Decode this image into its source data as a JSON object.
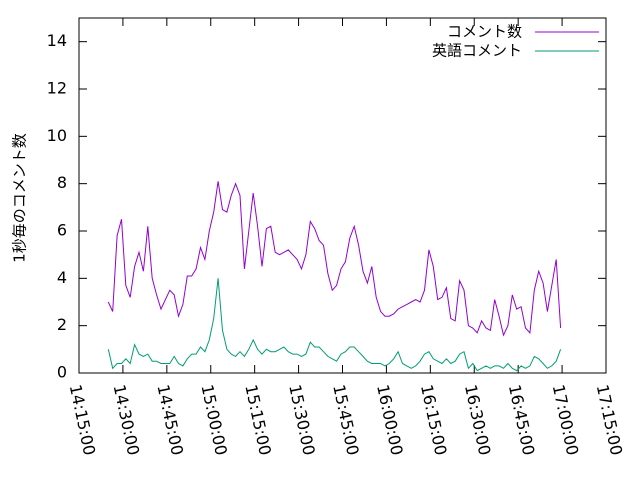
{
  "chart_data": {
    "type": "line",
    "ylabel": "1秒毎のコメント数",
    "x": [
      "14:25:00",
      "14:26:30",
      "14:28:00",
      "14:29:30",
      "14:31:00",
      "14:32:30",
      "14:34:00",
      "14:35:30",
      "14:37:00",
      "14:38:30",
      "14:40:00",
      "14:41:30",
      "14:43:00",
      "14:44:30",
      "14:46:00",
      "14:47:30",
      "14:49:00",
      "14:50:30",
      "14:52:00",
      "14:53:30",
      "14:55:00",
      "14:56:30",
      "14:58:00",
      "14:59:30",
      "15:01:00",
      "15:02:30",
      "15:04:00",
      "15:05:30",
      "15:07:00",
      "15:08:30",
      "15:10:00",
      "15:11:30",
      "15:13:00",
      "15:14:30",
      "15:16:00",
      "15:17:30",
      "15:19:00",
      "15:20:30",
      "15:22:00",
      "15:23:30",
      "15:25:00",
      "15:26:30",
      "15:28:00",
      "15:29:30",
      "15:31:00",
      "15:32:30",
      "15:34:00",
      "15:35:30",
      "15:37:00",
      "15:38:30",
      "15:40:00",
      "15:41:30",
      "15:43:00",
      "15:44:30",
      "15:46:00",
      "15:47:30",
      "15:49:00",
      "15:50:30",
      "15:52:00",
      "15:53:30",
      "15:55:00",
      "15:56:30",
      "15:58:00",
      "15:59:30",
      "16:01:00",
      "16:02:30",
      "16:04:00",
      "16:05:30",
      "16:07:00",
      "16:08:30",
      "16:10:00",
      "16:11:30",
      "16:13:00",
      "16:14:30",
      "16:16:00",
      "16:17:30",
      "16:19:00",
      "16:20:30",
      "16:22:00",
      "16:23:30",
      "16:25:00",
      "16:26:30",
      "16:28:00",
      "16:29:30",
      "16:31:00",
      "16:32:30",
      "16:34:00",
      "16:35:30",
      "16:37:00",
      "16:38:30",
      "16:40:00",
      "16:41:30",
      "16:43:00",
      "16:44:30",
      "16:46:00",
      "16:47:30",
      "16:49:00",
      "16:50:30",
      "16:52:00",
      "16:53:30",
      "16:55:00",
      "16:56:30",
      "16:58:00",
      "16:59:30"
    ],
    "series": [
      {
        "name": "コメント数",
        "color": "#9400d3",
        "values": [
          3.0,
          2.6,
          5.8,
          6.5,
          3.7,
          3.2,
          4.5,
          5.1,
          4.3,
          6.2,
          4.0,
          3.3,
          2.7,
          3.1,
          3.5,
          3.3,
          2.4,
          2.9,
          4.1,
          4.1,
          4.4,
          5.3,
          4.8,
          6.0,
          6.8,
          8.1,
          6.9,
          6.8,
          7.5,
          8.0,
          7.5,
          4.4,
          6.0,
          7.6,
          6.2,
          4.5,
          6.1,
          6.2,
          5.1,
          5.0,
          5.1,
          5.2,
          5.0,
          4.8,
          4.4,
          5.0,
          6.4,
          6.1,
          5.6,
          5.4,
          4.2,
          3.5,
          3.7,
          4.4,
          4.7,
          5.7,
          6.2,
          5.4,
          4.3,
          3.8,
          4.5,
          3.2,
          2.6,
          2.4,
          2.4,
          2.5,
          2.7,
          2.8,
          2.9,
          3.0,
          3.1,
          3.0,
          3.5,
          5.2,
          4.5,
          3.1,
          3.2,
          3.6,
          2.3,
          2.2,
          3.9,
          3.5,
          2.0,
          1.9,
          1.7,
          2.2,
          1.9,
          1.8,
          3.1,
          2.4,
          1.6,
          2.0,
          3.3,
          2.7,
          2.8,
          1.9,
          1.7,
          3.5,
          4.3,
          3.8,
          2.6,
          3.7,
          4.8,
          1.9
        ]
      },
      {
        "name": "英語コメント",
        "color": "#009e73",
        "values": [
          1.0,
          0.2,
          0.4,
          0.4,
          0.6,
          0.4,
          1.2,
          0.8,
          0.7,
          0.8,
          0.5,
          0.5,
          0.4,
          0.4,
          0.4,
          0.7,
          0.4,
          0.3,
          0.6,
          0.8,
          0.8,
          1.1,
          0.9,
          1.4,
          2.3,
          4.0,
          1.8,
          1.0,
          0.8,
          0.7,
          0.9,
          0.7,
          1.0,
          1.4,
          1.0,
          0.8,
          1.0,
          0.9,
          0.9,
          1.0,
          1.1,
          0.9,
          0.8,
          0.8,
          0.7,
          0.8,
          1.3,
          1.1,
          1.1,
          0.9,
          0.7,
          0.6,
          0.5,
          0.8,
          0.9,
          1.1,
          1.1,
          0.9,
          0.7,
          0.5,
          0.4,
          0.4,
          0.4,
          0.3,
          0.4,
          0.6,
          0.9,
          0.4,
          0.3,
          0.2,
          0.3,
          0.5,
          0.8,
          0.9,
          0.6,
          0.5,
          0.4,
          0.6,
          0.4,
          0.5,
          0.8,
          0.9,
          0.2,
          0.4,
          0.1,
          0.2,
          0.3,
          0.2,
          0.3,
          0.3,
          0.2,
          0.4,
          0.2,
          0.1,
          0.3,
          0.2,
          0.3,
          0.7,
          0.6,
          0.4,
          0.2,
          0.3,
          0.5,
          1.0
        ]
      }
    ],
    "xlim": [
      "14:15:00",
      "17:15:00"
    ],
    "xticks": [
      "14:15:00",
      "14:30:00",
      "14:45:00",
      "15:00:00",
      "15:15:00",
      "15:30:00",
      "15:45:00",
      "16:00:00",
      "16:15:00",
      "16:30:00",
      "16:45:00",
      "17:00:00",
      "17:15:00"
    ],
    "ylim": [
      0,
      15
    ],
    "yticks": [
      0,
      2,
      4,
      6,
      8,
      10,
      12,
      14
    ],
    "legend": "top-right"
  }
}
